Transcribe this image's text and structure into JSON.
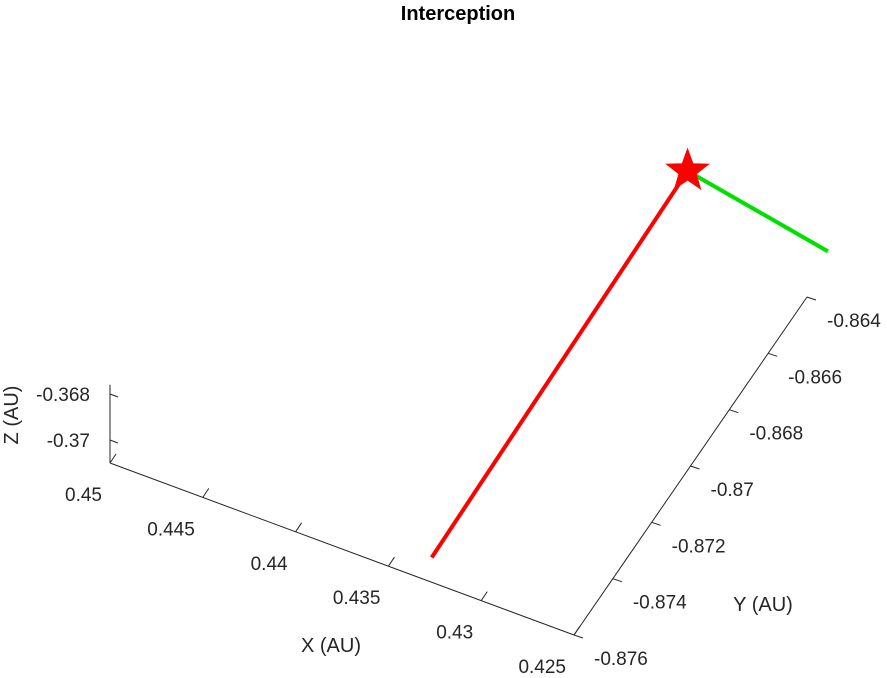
{
  "chart_data": {
    "type": "line3d",
    "title": "Interception",
    "xlabel": "X (AU)",
    "ylabel": "Y (AU)",
    "zlabel": "Z (AU)",
    "xlim": [
      0.425,
      0.45
    ],
    "ylim": [
      -0.876,
      -0.864
    ],
    "zlim": [
      -0.371,
      -0.368
    ],
    "x_ticks": [
      {
        "value": 0.45,
        "label": "0.45"
      },
      {
        "value": 0.445,
        "label": "0.445"
      },
      {
        "value": 0.44,
        "label": "0.44"
      },
      {
        "value": 0.435,
        "label": "0.435"
      },
      {
        "value": 0.43,
        "label": "0.43"
      },
      {
        "value": 0.425,
        "label": "0.425"
      }
    ],
    "y_ticks": [
      {
        "value": -0.876,
        "label": "-0.876"
      },
      {
        "value": -0.874,
        "label": "-0.874"
      },
      {
        "value": -0.872,
        "label": "-0.872"
      },
      {
        "value": -0.87,
        "label": "-0.87"
      },
      {
        "value": -0.868,
        "label": "-0.868"
      },
      {
        "value": -0.866,
        "label": "-0.866"
      },
      {
        "value": -0.864,
        "label": "-0.864"
      }
    ],
    "z_ticks": [
      {
        "value": -0.368,
        "label": "-0.368"
      },
      {
        "value": -0.37,
        "label": "-0.37"
      }
    ],
    "grid": false,
    "series": [
      {
        "color": "#ff0000",
        "points": [
          {
            "x": 0.4334,
            "y": -0.8753,
            "z": -0.371
          },
          {
            "x": 0.4329,
            "y": -0.8626,
            "z": -0.3696
          }
        ]
      },
      {
        "color": "#00e000",
        "points": [
          {
            "x": 0.4245,
            "y": -0.8634,
            "z": -0.3696
          },
          {
            "x": 0.4329,
            "y": -0.8626,
            "z": -0.3696
          }
        ]
      }
    ],
    "markers": [
      {
        "type": "star",
        "color": "#ff0000",
        "x": 0.4329,
        "y": -0.8626,
        "z": -0.3696
      }
    ]
  }
}
